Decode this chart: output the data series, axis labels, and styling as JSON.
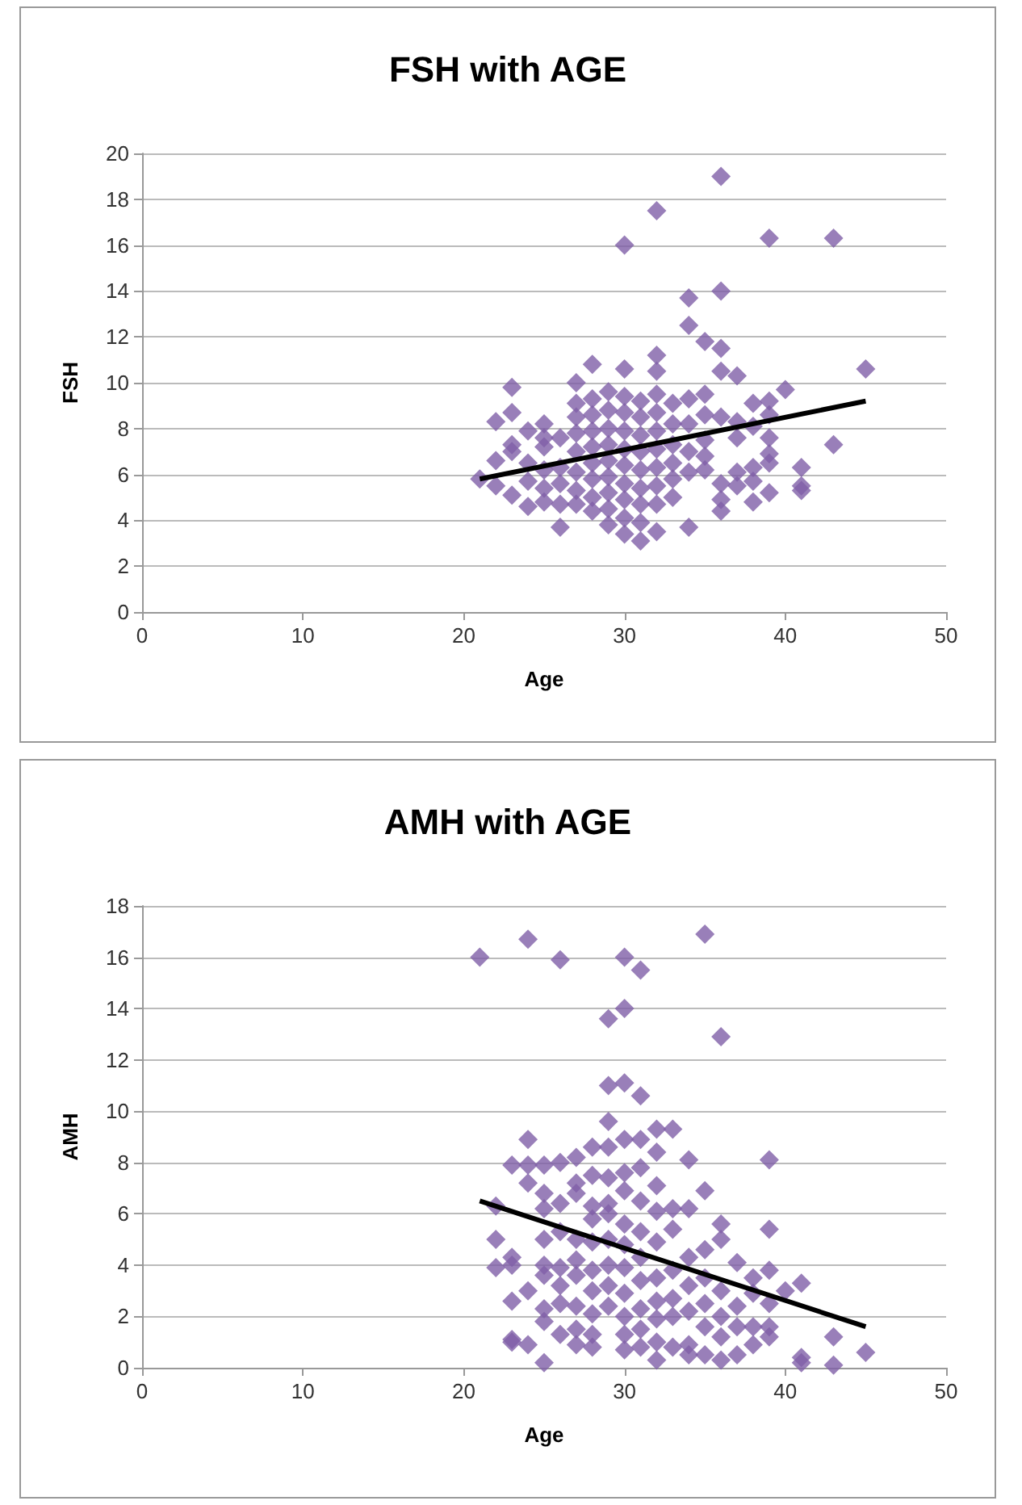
{
  "chart_data": [
    {
      "type": "scatter",
      "title": "FSH with AGE",
      "xlabel": "Age",
      "ylabel": "FSH",
      "xlim": [
        0,
        50
      ],
      "xticks": [
        0,
        10,
        20,
        30,
        40,
        50
      ],
      "ylim": [
        0,
        20
      ],
      "yticks": [
        0,
        2,
        4,
        6,
        8,
        10,
        12,
        14,
        16,
        18,
        20
      ],
      "grid": "y",
      "marker": "diamond",
      "series": [
        {
          "color": "#7f5fa8",
          "x": [
            21,
            22,
            22,
            22,
            23,
            23,
            23,
            23,
            23,
            24,
            24,
            24,
            24,
            25,
            25,
            25,
            25,
            25,
            25,
            26,
            26,
            26,
            26,
            26,
            27,
            27,
            27,
            27,
            27,
            27,
            27,
            27,
            28,
            28,
            28,
            28,
            28,
            28,
            28,
            28,
            28,
            29,
            29,
            29,
            29,
            29,
            29,
            29,
            29,
            29,
            30,
            30,
            30,
            30,
            30,
            30,
            30,
            30,
            30,
            30,
            30,
            31,
            31,
            31,
            31,
            31,
            31,
            31,
            31,
            31,
            32,
            32,
            32,
            32,
            32,
            32,
            32,
            32,
            32,
            32,
            32,
            33,
            33,
            33,
            33,
            33,
            33,
            34,
            34,
            34,
            34,
            34,
            34,
            34,
            35,
            35,
            35,
            35,
            35,
            35,
            36,
            36,
            36,
            36,
            36,
            36,
            36,
            36,
            37,
            37,
            37,
            37,
            37,
            38,
            38,
            38,
            38,
            38,
            39,
            39,
            39,
            39,
            39,
            39,
            39,
            40,
            41,
            41,
            41,
            43,
            43,
            45
          ],
          "values": [
            5.8,
            8.3,
            6.6,
            5.5,
            9.8,
            8.7,
            7.3,
            7.0,
            5.1,
            7.9,
            6.5,
            5.7,
            4.6,
            8.2,
            7.6,
            7.2,
            6.2,
            5.4,
            4.8,
            7.6,
            6.3,
            5.6,
            4.7,
            3.7,
            10.0,
            9.1,
            8.5,
            7.8,
            7.0,
            6.1,
            5.3,
            4.7,
            10.8,
            9.3,
            8.6,
            7.9,
            7.2,
            6.5,
            5.8,
            5.0,
            4.4,
            9.6,
            8.8,
            8.0,
            7.3,
            6.6,
            5.9,
            5.2,
            4.5,
            3.8,
            16.0,
            10.6,
            9.4,
            8.7,
            7.9,
            7.1,
            6.4,
            5.6,
            4.9,
            4.1,
            3.4,
            9.2,
            8.5,
            7.7,
            7.0,
            6.2,
            5.4,
            4.7,
            3.9,
            3.1,
            17.5,
            11.2,
            10.5,
            9.5,
            8.7,
            7.9,
            7.1,
            6.3,
            5.5,
            4.7,
            3.5,
            9.1,
            8.2,
            7.3,
            6.5,
            5.8,
            5.0,
            13.7,
            12.5,
            9.3,
            8.2,
            7.0,
            6.1,
            3.7,
            11.8,
            9.5,
            8.6,
            7.5,
            6.8,
            6.2,
            19.0,
            14.0,
            11.5,
            10.5,
            8.5,
            5.6,
            4.9,
            4.4,
            10.3,
            8.3,
            7.6,
            6.1,
            5.5,
            9.1,
            8.1,
            6.3,
            5.7,
            4.8,
            16.3,
            9.2,
            8.6,
            7.6,
            6.9,
            6.5,
            5.2,
            9.7,
            6.3,
            5.5,
            5.3,
            16.3,
            7.3,
            10.6
          ]
        },
        {
          "type": "line",
          "color": "#000000",
          "marker": "none",
          "x": [
            21,
            45
          ],
          "values": [
            5.8,
            9.2
          ]
        }
      ]
    },
    {
      "type": "scatter",
      "title": "AMH with AGE",
      "xlabel": "Age",
      "ylabel": "AMH",
      "xlim": [
        0,
        50
      ],
      "xticks": [
        0,
        10,
        20,
        30,
        40,
        50
      ],
      "ylim": [
        0,
        18
      ],
      "yticks": [
        0,
        2,
        4,
        6,
        8,
        10,
        12,
        14,
        16,
        18
      ],
      "grid": "y",
      "marker": "diamond",
      "series": [
        {
          "color": "#7f5fa8",
          "x": [
            21,
            22,
            22,
            22,
            23,
            23,
            23,
            23,
            23,
            23,
            24,
            24,
            24,
            24,
            24,
            24,
            25,
            25,
            25,
            25,
            25,
            25,
            25,
            25,
            25,
            26,
            26,
            26,
            26,
            26,
            26,
            26,
            26,
            27,
            27,
            27,
            27,
            27,
            27,
            27,
            27,
            27,
            28,
            28,
            28,
            28,
            28,
            28,
            28,
            28,
            28,
            28,
            29,
            29,
            29,
            29,
            29,
            29,
            29,
            29,
            29,
            29,
            29,
            30,
            30,
            30,
            30,
            30,
            30,
            30,
            30,
            30,
            30,
            30,
            30,
            30,
            31,
            31,
            31,
            31,
            31,
            31,
            31,
            31,
            31,
            31,
            31,
            32,
            32,
            32,
            32,
            32,
            32,
            32,
            32,
            32,
            32,
            33,
            33,
            33,
            33,
            33,
            33,
            33,
            34,
            34,
            34,
            34,
            34,
            34,
            34,
            35,
            35,
            35,
            35,
            35,
            35,
            35,
            36,
            36,
            36,
            36,
            36,
            36,
            36,
            37,
            37,
            37,
            37,
            38,
            38,
            38,
            38,
            39,
            39,
            39,
            39,
            39,
            39,
            40,
            41,
            41,
            41,
            43,
            43,
            45
          ],
          "values": [
            16.0,
            6.3,
            5.0,
            3.9,
            7.9,
            4.3,
            4.0,
            2.6,
            1.1,
            1.0,
            16.7,
            8.9,
            7.9,
            7.2,
            3.0,
            0.9,
            7.9,
            6.8,
            6.2,
            5.0,
            4.0,
            3.6,
            2.3,
            1.8,
            0.2,
            15.9,
            8.0,
            6.4,
            5.3,
            3.9,
            3.2,
            2.5,
            1.3,
            8.2,
            7.2,
            6.8,
            5.0,
            4.2,
            3.6,
            2.4,
            1.5,
            0.9,
            8.6,
            7.5,
            6.3,
            5.8,
            4.9,
            3.8,
            3.0,
            2.1,
            1.3,
            0.8,
            13.6,
            11.0,
            9.6,
            8.6,
            7.4,
            6.4,
            6.0,
            5.0,
            4.0,
            3.2,
            2.4,
            16.0,
            14.0,
            11.1,
            8.9,
            7.6,
            6.9,
            5.6,
            4.8,
            3.9,
            2.9,
            2.0,
            1.3,
            0.7,
            15.5,
            10.6,
            8.9,
            7.8,
            6.5,
            5.3,
            4.3,
            3.4,
            2.3,
            1.5,
            0.8,
            9.3,
            8.4,
            7.1,
            6.1,
            4.9,
            3.5,
            2.6,
            1.9,
            1.0,
            0.3,
            9.3,
            6.2,
            5.4,
            3.8,
            2.7,
            2.0,
            0.8,
            8.1,
            6.2,
            4.3,
            3.2,
            2.2,
            0.9,
            0.5,
            16.9,
            6.9,
            4.6,
            3.5,
            2.5,
            1.6,
            0.5,
            12.9,
            5.6,
            5.0,
            3.0,
            2.0,
            1.2,
            0.3,
            4.1,
            2.4,
            1.6,
            0.5,
            3.5,
            2.9,
            1.6,
            0.9,
            8.1,
            5.4,
            3.8,
            2.5,
            1.6,
            1.2,
            3.0,
            3.3,
            0.4,
            0.2,
            1.2,
            0.1,
            0.6
          ]
        },
        {
          "type": "line",
          "color": "#000000",
          "marker": "none",
          "x": [
            21,
            45
          ],
          "values": [
            6.5,
            1.6
          ]
        }
      ]
    }
  ]
}
